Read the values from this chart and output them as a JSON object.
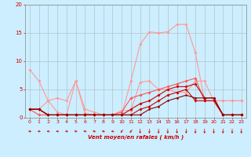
{
  "background_color": "#cceeff",
  "grid_color": "#aabbbb",
  "xlabel": "Vent moyen/en rafales ( km/h )",
  "xlabel_color": "#cc0000",
  "ylabel_color": "#cc0000",
  "tick_color": "#cc0000",
  "xlim": [
    -0.5,
    23.5
  ],
  "ylim": [
    0,
    20
  ],
  "yticks": [
    0,
    5,
    10,
    15,
    20
  ],
  "xticks": [
    0,
    1,
    2,
    3,
    4,
    5,
    6,
    7,
    8,
    9,
    10,
    11,
    12,
    13,
    14,
    15,
    16,
    17,
    18,
    19,
    20,
    21,
    22,
    23
  ],
  "series": [
    {
      "x": [
        0,
        1,
        2,
        3,
        4,
        5,
        6,
        7,
        8,
        9,
        10,
        11,
        12,
        13,
        14,
        15,
        16,
        17,
        18,
        19,
        20,
        21,
        22,
        23
      ],
      "y": [
        8.5,
        6.5,
        3.0,
        3.5,
        3.0,
        6.5,
        1.5,
        1.0,
        0.5,
        0.5,
        0.5,
        6.5,
        13.0,
        15.2,
        15.0,
        15.2,
        16.5,
        16.5,
        11.5,
        3.0,
        3.0,
        3.0,
        3.0,
        3.0
      ],
      "color": "#ff9999",
      "lw": 0.8,
      "marker": "D",
      "ms": 1.8
    },
    {
      "x": [
        0,
        1,
        2,
        3,
        4,
        5,
        6,
        7,
        8,
        9,
        10,
        11,
        12,
        13,
        14,
        15,
        16,
        17,
        18,
        19,
        20,
        21,
        22,
        23
      ],
      "y": [
        1.5,
        1.5,
        3.0,
        1.0,
        0.5,
        6.5,
        0.8,
        0.5,
        0.5,
        0.5,
        1.3,
        1.3,
        6.3,
        6.5,
        5.0,
        5.0,
        4.5,
        4.5,
        6.5,
        6.5,
        3.0,
        3.0,
        3.0,
        3.0
      ],
      "color": "#ff9999",
      "lw": 0.8,
      "marker": "D",
      "ms": 1.8
    },
    {
      "x": [
        0,
        1,
        2,
        3,
        4,
        5,
        6,
        7,
        8,
        9,
        10,
        11,
        12,
        13,
        14,
        15,
        16,
        17,
        18,
        19,
        20,
        21,
        22,
        23
      ],
      "y": [
        1.5,
        0.5,
        0.5,
        0.5,
        0.5,
        0.5,
        0.5,
        0.5,
        0.5,
        0.5,
        1.0,
        3.5,
        4.0,
        4.5,
        5.0,
        5.5,
        6.0,
        6.5,
        7.0,
        3.0,
        3.0,
        0.5,
        0.5,
        0.5
      ],
      "color": "#ff5555",
      "lw": 0.8,
      "marker": "D",
      "ms": 1.8
    },
    {
      "x": [
        0,
        1,
        2,
        3,
        4,
        5,
        6,
        7,
        8,
        9,
        10,
        11,
        12,
        13,
        14,
        15,
        16,
        17,
        18,
        19,
        20,
        21,
        22,
        23
      ],
      "y": [
        1.5,
        1.5,
        0.5,
        0.5,
        0.5,
        0.5,
        0.5,
        0.5,
        0.5,
        0.5,
        0.5,
        1.5,
        2.5,
        3.0,
        4.0,
        5.0,
        5.5,
        5.5,
        6.0,
        3.5,
        3.5,
        0.5,
        0.5,
        0.5
      ],
      "color": "#cc0000",
      "lw": 0.8,
      "marker": "D",
      "ms": 1.8
    },
    {
      "x": [
        0,
        1,
        2,
        3,
        4,
        5,
        6,
        7,
        8,
        9,
        10,
        11,
        12,
        13,
        14,
        15,
        16,
        17,
        18,
        19,
        20,
        21,
        22,
        23
      ],
      "y": [
        1.5,
        1.5,
        0.5,
        0.5,
        0.5,
        0.5,
        0.5,
        0.5,
        0.5,
        0.5,
        0.5,
        0.5,
        1.5,
        2.0,
        3.0,
        4.0,
        4.5,
        5.0,
        3.0,
        3.0,
        3.0,
        0.5,
        0.5,
        0.5
      ],
      "color": "#cc0000",
      "lw": 0.8,
      "marker": "D",
      "ms": 1.8
    },
    {
      "x": [
        0,
        1,
        2,
        3,
        4,
        5,
        6,
        7,
        8,
        9,
        10,
        11,
        12,
        13,
        14,
        15,
        16,
        17,
        18,
        19,
        20,
        21,
        22,
        23
      ],
      "y": [
        1.5,
        1.5,
        0.5,
        0.5,
        0.5,
        0.5,
        0.5,
        0.5,
        0.5,
        0.5,
        0.5,
        0.5,
        0.5,
        1.5,
        2.0,
        3.0,
        3.5,
        4.0,
        3.5,
        3.5,
        3.5,
        0.5,
        0.5,
        0.5
      ],
      "color": "#880000",
      "lw": 0.8,
      "marker": "D",
      "ms": 1.5
    }
  ],
  "wind_arrows": {
    "x": [
      0,
      1,
      2,
      3,
      4,
      5,
      6,
      7,
      8,
      9,
      10,
      11,
      12,
      13,
      14,
      15,
      16,
      17,
      18,
      19,
      20,
      21,
      22,
      23
    ],
    "angles_deg": [
      270,
      270,
      270,
      270,
      270,
      255,
      255,
      255,
      255,
      270,
      315,
      315,
      0,
      0,
      0,
      0,
      0,
      0,
      0,
      0,
      0,
      0,
      0,
      0
    ],
    "color": "#cc0000"
  }
}
